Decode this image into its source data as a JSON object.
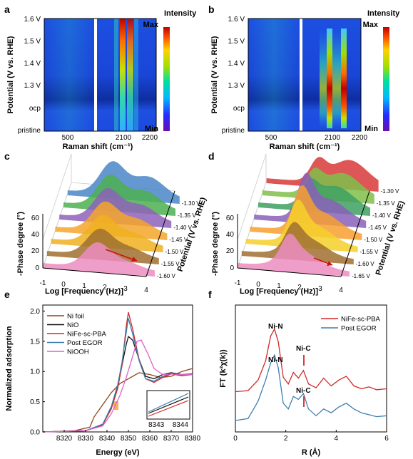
{
  "figure": {
    "panels": {
      "a": {
        "label": "a"
      },
      "b": {
        "label": "b"
      },
      "c": {
        "label": "c"
      },
      "d": {
        "label": "d"
      },
      "e": {
        "label": "e"
      },
      "f": {
        "label": "f"
      }
    }
  },
  "raman": {
    "ylabel": "Potential (V vs. RHE)",
    "xlabel": "Raman shift (cm⁻¹)",
    "y_ticks": [
      "1.6 V",
      "1.5 V",
      "1.4 V",
      "1.3 V",
      "ocp",
      "pristine"
    ],
    "x_ticks_left": [
      "500"
    ],
    "x_ticks_right": [
      "2100",
      "2200"
    ],
    "colorbar_title": "Intensity",
    "colorbar_max": "Max",
    "colorbar_min": "Min"
  },
  "bode": {
    "xlabel": "Log [Frequency (Hz)]",
    "ylabel": "-Phase degree (°)",
    "zlabel": "Potential (V vs. RHE)",
    "x_ticks": [
      "-1",
      "0",
      "1",
      "2",
      "3",
      "4"
    ],
    "y_ticks": [
      "0",
      "20",
      "40",
      "60"
    ],
    "c_potentials": [
      "1.30 V",
      "1.35 V",
      "1.40 V",
      "1.45 V",
      "1.50 V",
      "1.55 V",
      "1.60 V"
    ],
    "d_potentials": [
      "1.30 V",
      "1.35 V",
      "1.40 V",
      "1.45 V",
      "1.50 V",
      "1.55 V",
      "1.60 V",
      "1.65 V"
    ]
  },
  "chart_data": [
    {
      "type": "line",
      "panel": "e",
      "xlabel": "Energy (eV)",
      "ylabel": "Normalized adsorption",
      "xlim": [
        8310,
        8380
      ],
      "ylim": [
        0,
        2.1
      ],
      "x_ticks": [
        "8320",
        "8330",
        "8340",
        "8350",
        "8360",
        "8370",
        "8380"
      ],
      "y_ticks": [
        "0.0",
        "0.5",
        "1.0",
        "1.5",
        "2.0"
      ],
      "legend_position": "top-left",
      "series": [
        {
          "name": "Ni foil",
          "color": "#8b4513",
          "x": [
            8310,
            8325,
            8332,
            8334,
            8338,
            8342,
            8346,
            8350,
            8355,
            8360,
            8365,
            8370,
            8375,
            8380
          ],
          "y": [
            0.0,
            0.02,
            0.08,
            0.25,
            0.45,
            0.65,
            0.8,
            0.88,
            0.98,
            0.95,
            0.9,
            0.92,
            1.0,
            1.05
          ]
        },
        {
          "name": "NiO",
          "color": "#111111",
          "x": [
            8310,
            8330,
            8338,
            8342,
            8345,
            8347,
            8349,
            8350,
            8352,
            8355,
            8358,
            8362,
            8366,
            8370,
            8375,
            8380
          ],
          "y": [
            0.0,
            0.02,
            0.12,
            0.4,
            0.75,
            1.1,
            1.45,
            1.58,
            1.52,
            1.2,
            0.92,
            0.88,
            0.95,
            0.98,
            0.95,
            0.96
          ]
        },
        {
          "name": "NiFe-sc-PBA",
          "color": "#d02828",
          "x": [
            8310,
            8330,
            8338,
            8342,
            8345,
            8347,
            8349,
            8350,
            8352,
            8355,
            8358,
            8362,
            8366,
            8370,
            8375,
            8380
          ],
          "y": [
            0.0,
            0.02,
            0.12,
            0.38,
            0.72,
            1.1,
            1.75,
            1.98,
            1.7,
            1.2,
            0.88,
            0.82,
            0.9,
            0.96,
            0.93,
            0.95
          ]
        },
        {
          "name": "Post EGOR",
          "color": "#3d7fb0",
          "x": [
            8310,
            8330,
            8338,
            8342,
            8345,
            8347,
            8349,
            8350,
            8352,
            8355,
            8358,
            8362,
            8366,
            8370,
            8375,
            8380
          ],
          "y": [
            0.0,
            0.02,
            0.13,
            0.42,
            0.78,
            1.15,
            1.65,
            1.88,
            1.62,
            1.18,
            0.88,
            0.84,
            0.92,
            0.97,
            0.94,
            0.95
          ]
        },
        {
          "name": "NiOOH",
          "color": "#e060c8",
          "x": [
            8310,
            8330,
            8338,
            8342,
            8346,
            8349,
            8352,
            8354,
            8356,
            8359,
            8362,
            8366,
            8370,
            8375,
            8380
          ],
          "y": [
            0.0,
            0.02,
            0.1,
            0.3,
            0.6,
            0.9,
            1.25,
            1.5,
            1.52,
            1.3,
            1.05,
            0.95,
            0.96,
            0.95,
            0.95
          ]
        }
      ],
      "inset": {
        "x_ticks": [
          "8343",
          "8344"
        ]
      }
    },
    {
      "type": "line",
      "panel": "f",
      "xlabel": "R (Å)",
      "ylabel": "FT (k²χ(k))",
      "xlim": [
        0,
        6
      ],
      "x_ticks": [
        "0",
        "2",
        "4",
        "6"
      ],
      "legend_position": "top-right",
      "annotations": [
        "Ni-N",
        "Ni-C",
        "Ni-N",
        "Ni-C"
      ],
      "series": [
        {
          "name": "NiFe-sc-PBA",
          "color": "#d02828",
          "x": [
            0.0,
            0.5,
            0.9,
            1.2,
            1.4,
            1.55,
            1.7,
            1.9,
            2.1,
            2.3,
            2.5,
            2.7,
            2.9,
            3.2,
            3.5,
            3.8,
            4.1,
            4.4,
            4.7,
            5.0,
            5.3,
            5.6,
            6.0
          ],
          "y": [
            0.3,
            0.31,
            0.42,
            0.62,
            0.88,
            0.95,
            0.82,
            0.45,
            0.38,
            0.5,
            0.44,
            0.52,
            0.38,
            0.34,
            0.44,
            0.36,
            0.42,
            0.46,
            0.36,
            0.33,
            0.35,
            0.32,
            0.33
          ]
        },
        {
          "name": "Post EGOR",
          "color": "#3d7fb0",
          "x": [
            0.0,
            0.5,
            0.9,
            1.2,
            1.4,
            1.55,
            1.7,
            1.9,
            2.1,
            2.3,
            2.5,
            2.7,
            2.9,
            3.2,
            3.5,
            3.8,
            4.1,
            4.4,
            4.7,
            5.0,
            5.3,
            5.6,
            6.0
          ],
          "y": [
            0.0,
            0.02,
            0.2,
            0.42,
            0.6,
            0.68,
            0.55,
            0.18,
            0.12,
            0.25,
            0.22,
            0.28,
            0.12,
            0.05,
            0.12,
            0.08,
            0.14,
            0.18,
            0.12,
            0.08,
            0.06,
            0.04,
            0.05
          ]
        }
      ]
    }
  ]
}
